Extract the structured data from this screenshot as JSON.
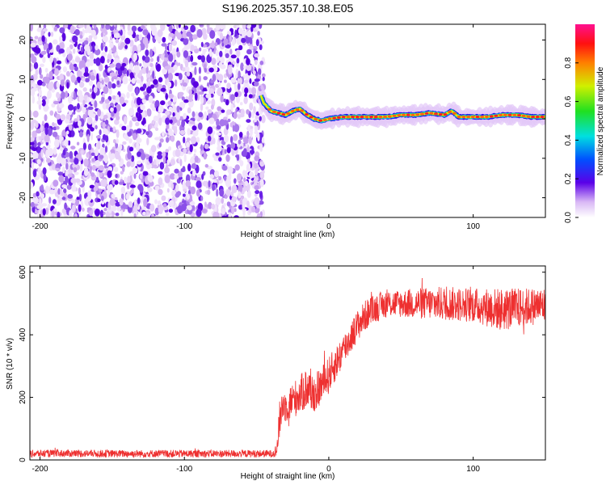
{
  "title": "S196.2025.357.10.38.E05",
  "chart_data": [
    {
      "id": "spectrogram",
      "type": "heatmap",
      "xlabel": "Height of straight line (km)",
      "ylabel": "Frequency (Hz)",
      "xlim": [
        -207,
        150
      ],
      "ylim": [
        -25,
        24
      ],
      "xticks": [
        -200,
        -100,
        0,
        100
      ],
      "yticks": [
        -20,
        -10,
        0,
        10,
        20
      ],
      "noise_region_x": [
        -207,
        -45
      ],
      "signal_trace": {
        "x": [
          -47,
          -45,
          -40,
          -35,
          -30,
          -25,
          -20,
          -15,
          -10,
          -5,
          0,
          10,
          20,
          30,
          40,
          50,
          60,
          70,
          80,
          85,
          90,
          100,
          110,
          120,
          130,
          140,
          150
        ],
        "y": [
          6,
          4,
          2,
          1.5,
          1,
          2,
          2.5,
          1,
          0,
          -0.5,
          0,
          0.5,
          0.5,
          0.5,
          0.5,
          1,
          1,
          1.5,
          1,
          2,
          0.5,
          0.5,
          0.5,
          1,
          1,
          0.5,
          0.5
        ]
      },
      "colorbar": {
        "label": "Normalized spectral amplitude",
        "range": [
          0,
          1
        ],
        "ticks": [
          "0.0",
          "0.2",
          "0.4",
          "0.6",
          "0.8"
        ],
        "tick_values": [
          0,
          0.2,
          0.4,
          0.6,
          0.8
        ]
      }
    },
    {
      "id": "snr",
      "type": "line",
      "xlabel": "Height of straight line (km)",
      "ylabel": "SNR (10 * v/v)",
      "xlim": [
        -207,
        150
      ],
      "ylim": [
        0,
        620
      ],
      "xticks": [
        -200,
        -100,
        0,
        100
      ],
      "yticks": [
        0,
        200,
        400,
        600
      ],
      "color": "#ee3030",
      "series": [
        {
          "name": "SNR",
          "envelope": {
            "x": [
              -207,
              -180,
              -150,
              -120,
              -90,
              -60,
              -40,
              -36,
              -34,
              -32,
              -30,
              -25,
              -20,
              -15,
              -10,
              -5,
              0,
              5,
              10,
              15,
              20,
              25,
              30,
              40,
              50,
              60,
              80,
              100,
              120,
              140,
              150
            ],
            "center": [
              20,
              21,
              20,
              20,
              20,
              20,
              20,
              30,
              130,
              180,
              170,
              190,
              210,
              230,
              210,
              240,
              270,
              310,
              350,
              390,
              430,
              460,
              480,
              500,
              500,
              500,
              500,
              495,
              480,
              490,
              495
            ],
            "spread": [
              12,
              12,
              12,
              12,
              12,
              12,
              12,
              20,
              60,
              60,
              50,
              60,
              60,
              70,
              60,
              60,
              60,
              55,
              55,
              50,
              50,
              50,
              45,
              45,
              45,
              50,
              55,
              55,
              70,
              60,
              60
            ]
          }
        }
      ]
    }
  ]
}
